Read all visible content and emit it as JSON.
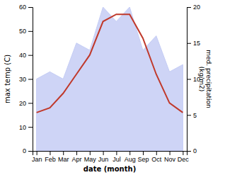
{
  "chart_data": {
    "type": "line",
    "categories": [
      "Jan",
      "Feb",
      "Mar",
      "Apr",
      "May",
      "Jun",
      "Jul",
      "Aug",
      "Sep",
      "Oct",
      "Nov",
      "Dec"
    ],
    "series": [
      {
        "type": "area",
        "axis": "y2",
        "color": "#c5cdf5",
        "values": [
          10,
          11,
          10,
          15,
          14,
          20,
          18,
          20,
          14,
          16,
          11,
          12
        ]
      },
      {
        "type": "line",
        "color": "#c0392b",
        "values": [
          16,
          18,
          24,
          32,
          40,
          54,
          57,
          57,
          47,
          32,
          20,
          16
        ]
      }
    ],
    "x_label": "date (month)",
    "y_label": "max temp (C)",
    "y2_label": "med. precipitation\n(kg/m2)",
    "ylim": [
      0,
      60
    ],
    "yticks": [
      0,
      10,
      20,
      30,
      40,
      50,
      60
    ],
    "y2lim": [
      0,
      20
    ],
    "y2ticks": [
      0,
      5,
      10,
      15,
      20
    ],
    "grid": false
  }
}
